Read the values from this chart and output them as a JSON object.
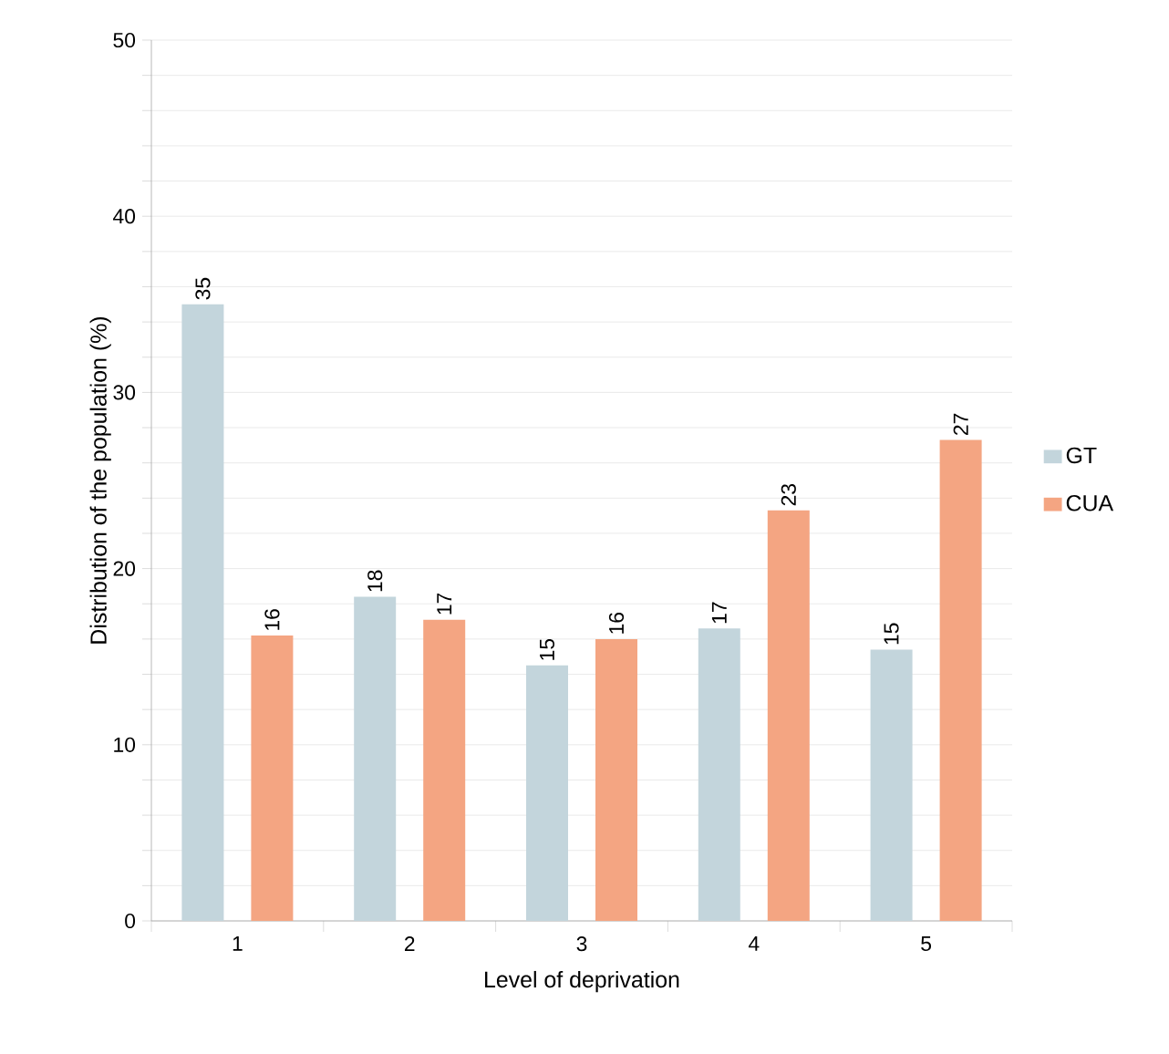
{
  "chart_data": {
    "type": "bar",
    "xlabel": "Level of deprivation",
    "ylabel": "Distribution of the population (%)",
    "categories": [
      "1",
      "2",
      "3",
      "4",
      "5"
    ],
    "series": [
      {
        "name": "GT",
        "color": "#c3d5dc",
        "values": [
          35.0,
          18.4,
          14.5,
          16.6,
          15.4
        ],
        "value_labels": [
          "35",
          "18",
          "15",
          "17",
          "15"
        ]
      },
      {
        "name": "CUA",
        "color": "#f4a582",
        "values": [
          16.2,
          17.1,
          16.0,
          23.3,
          27.3
        ],
        "value_labels": [
          "16",
          "17",
          "16",
          "23",
          "27"
        ]
      }
    ],
    "ylim": [
      0,
      50
    ],
    "yticks": [
      0,
      {
        "value": 2,
        "label": null
      },
      {
        "value": 4,
        "label": null
      },
      {
        "value": 6,
        "label": null
      },
      {
        "value": 8,
        "label": null
      },
      10,
      {
        "value": 12,
        "label": null
      },
      {
        "value": 14,
        "label": null
      },
      {
        "value": 16,
        "label": null
      },
      {
        "value": 18,
        "label": null
      },
      20,
      {
        "value": 22,
        "label": null
      },
      {
        "value": 24,
        "label": null
      },
      {
        "value": 26,
        "label": null
      },
      {
        "value": 28,
        "label": null
      },
      30,
      {
        "value": 32,
        "label": null
      },
      {
        "value": 34,
        "label": null
      },
      {
        "value": 36,
        "label": null
      },
      {
        "value": 38,
        "label": null
      },
      40,
      {
        "value": 42,
        "label": null
      },
      {
        "value": 44,
        "label": null
      },
      {
        "value": 46,
        "label": null
      },
      {
        "value": 48,
        "label": null
      },
      50
    ],
    "grid": "y",
    "legend": "right"
  }
}
